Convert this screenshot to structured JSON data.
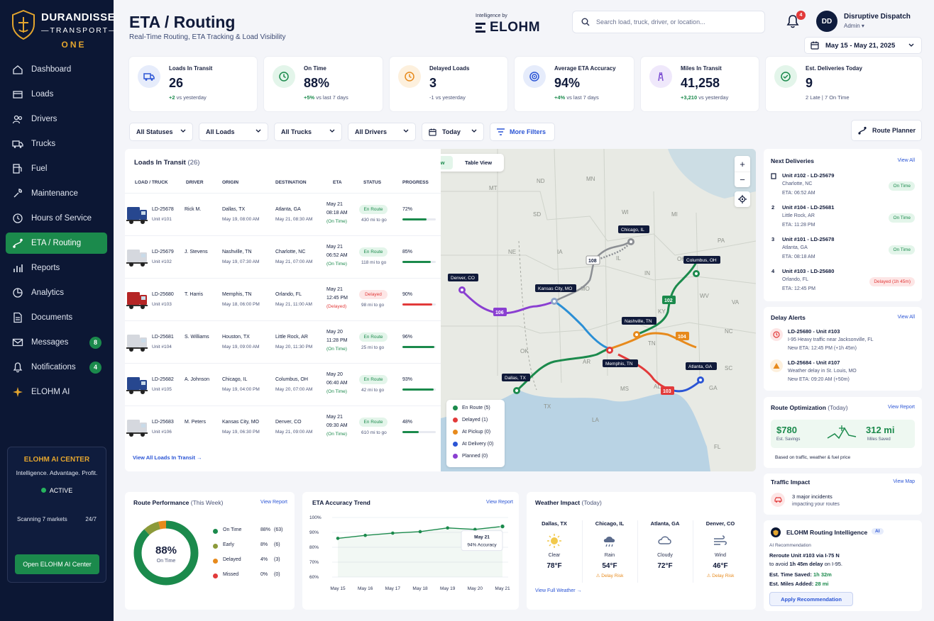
{
  "brand": {
    "name": "DURANDISSE",
    "sub": "TRANSPORT",
    "edition": "ONE"
  },
  "nav": [
    {
      "label": "Dashboard",
      "icon": "home-icon"
    },
    {
      "label": "Loads",
      "icon": "box-icon"
    },
    {
      "label": "Drivers",
      "icon": "users-icon"
    },
    {
      "label": "Trucks",
      "icon": "truck-icon"
    },
    {
      "label": "Fuel",
      "icon": "fuel-icon"
    },
    {
      "label": "Maintenance",
      "icon": "wrench-icon"
    },
    {
      "label": "Hours of Service",
      "icon": "clock-icon"
    },
    {
      "label": "ETA / Routing",
      "icon": "route-icon",
      "active": true
    },
    {
      "label": "Reports",
      "icon": "bar-chart-icon"
    },
    {
      "label": "Analytics",
      "icon": "analytics-icon"
    },
    {
      "label": "Documents",
      "icon": "document-icon"
    },
    {
      "label": "Messages",
      "icon": "mail-icon",
      "badge": "8"
    },
    {
      "label": "Notifications",
      "icon": "bell-icon",
      "badge": "4"
    },
    {
      "label": "ELOHM AI",
      "icon": "sparkle-icon"
    }
  ],
  "ai_center": {
    "title": "ELOHM AI CENTER",
    "subtitle": "Intelligence. Advantage. Profit.",
    "status": "ACTIVE",
    "scanning": "Scanning 7 markets",
    "uptime": "24/7",
    "button": "Open ELOHM AI Center"
  },
  "header": {
    "title": "ETA / Routing",
    "subtitle": "Real-Time Routing, ETA Tracking & Load Visibility",
    "intel_label": "Intelligence by",
    "intel_brand": "ELOHM",
    "search_placeholder": "Search load, truck, driver, or location...",
    "bell_count": "4",
    "avatar": "DD",
    "user_name": "Disruptive Dispatch",
    "user_role": "Admin",
    "date_range": "May 15 - May 21, 2025"
  },
  "kpis": [
    {
      "label": "Loads In Transit",
      "value": "26",
      "delta": "+2",
      "delta_text": "vs yesterday",
      "color": "#2b55d5",
      "bg": "#e6ecfb",
      "icon": "truck-icon"
    },
    {
      "label": "On Time",
      "value": "88%",
      "delta": "+5%",
      "delta_text": "vs last 7 days",
      "color": "#1b8a4c",
      "bg": "#e3f5ea",
      "icon": "clock-icon"
    },
    {
      "label": "Delayed Loads",
      "value": "3",
      "delta": "",
      "delta_text": "-1 vs yesterday",
      "color": "#e78a1c",
      "bg": "#fdf0dd",
      "icon": "clock-icon"
    },
    {
      "label": "Average ETA Accuracy",
      "value": "94%",
      "delta": "+4%",
      "delta_text": "vs last 7 days",
      "color": "#2b55d5",
      "bg": "#e6ecfb",
      "icon": "target-icon"
    },
    {
      "label": "Miles In Transit",
      "value": "41,258",
      "delta": "+3,210",
      "delta_text": "vs yesterday",
      "color": "#7a4bd1",
      "bg": "#efe8fb",
      "icon": "road-icon"
    },
    {
      "label": "Est. Deliveries Today",
      "value": "9",
      "delta": "",
      "delta_text": "2 Late  |  7 On Time",
      "color": "#1b8a4c",
      "bg": "#e3f5ea",
      "icon": "check-circle-icon"
    }
  ],
  "filters": [
    "All Statuses",
    "All Loads",
    "All Trucks",
    "All Drivers",
    "Today",
    "More Filters",
    "Route Planner"
  ],
  "loads": {
    "title": "Loads In Transit",
    "count": "(26)",
    "headers": [
      "LOAD / TRUCK",
      "DRIVER",
      "ORIGIN",
      "DESTINATION",
      "ETA",
      "STATUS",
      "PROGRESS"
    ],
    "rows": [
      {
        "load": "LD-25678",
        "unit": "Unit #101",
        "driver": "Rick M.",
        "origin": "Dallas, TX",
        "origin_t": "May 19, 08:00 AM",
        "dest": "Atlanta, GA",
        "dest_t": "May 21, 08:30 AM",
        "eta_d": "May 21",
        "eta_t": "08:18 AM",
        "eta_s": "(On Time)",
        "status": "En Route",
        "miles": "430 mi to go",
        "progress": 72,
        "pct": "72%",
        "truck": "#27478f",
        "late": false
      },
      {
        "load": "LD-25679",
        "unit": "Unit #102",
        "driver": "J. Stevens",
        "origin": "Nashville, TN",
        "origin_t": "May 19, 07:30 AM",
        "dest": "Charlotte, NC",
        "dest_t": "May 21, 07:00 AM",
        "eta_d": "May 21",
        "eta_t": "06:52 AM",
        "eta_s": "(On Time)",
        "status": "En Route",
        "miles": "118 mi to go",
        "progress": 85,
        "pct": "85%",
        "truck": "#d5d8de",
        "late": false
      },
      {
        "load": "LD-25680",
        "unit": "Unit #103",
        "driver": "T. Harris",
        "origin": "Memphis, TN",
        "origin_t": "May 18, 06:00 PM",
        "dest": "Orlando, FL",
        "dest_t": "May 21, 11:00 AM",
        "eta_d": "May 21",
        "eta_t": "12:45 PM",
        "eta_s": "(Delayed)",
        "status": "Delayed",
        "miles": "98 mi to go",
        "progress": 90,
        "pct": "90%",
        "truck": "#b52525",
        "late": true
      },
      {
        "load": "LD-25681",
        "unit": "Unit #104",
        "driver": "S. Williams",
        "origin": "Houston, TX",
        "origin_t": "May 19, 09:00 AM",
        "dest": "Little Rock, AR",
        "dest_t": "May 20, 11:30 PM",
        "eta_d": "May 20",
        "eta_t": "11:28 PM",
        "eta_s": "(On Time)",
        "status": "En Route",
        "miles": "25 mi to go",
        "progress": 96,
        "pct": "96%",
        "truck": "#d5d8de",
        "late": false
      },
      {
        "load": "LD-25682",
        "unit": "Unit #105",
        "driver": "A. Johnson",
        "origin": "Chicago, IL",
        "origin_t": "May 19, 04:00 PM",
        "dest": "Columbus, OH",
        "dest_t": "May 20, 07:00 AM",
        "eta_d": "May 20",
        "eta_t": "06:40 AM",
        "eta_s": "(On Time)",
        "status": "En Route",
        "miles": "42 mi to go",
        "progress": 93,
        "pct": "93%",
        "truck": "#27478f",
        "late": false
      },
      {
        "load": "LD-25683",
        "unit": "Unit #106",
        "driver": "M. Peters",
        "origin": "Kansas City, MO",
        "origin_t": "May 19, 06:30 PM",
        "dest": "Denver, CO",
        "dest_t": "May 21, 09:00 AM",
        "eta_d": "May 21",
        "eta_t": "09:30 AM",
        "eta_s": "(On Time)",
        "status": "En Route",
        "miles": "610 mi to go",
        "progress": 48,
        "pct": "48%",
        "truck": "#d5d8de",
        "late": false
      }
    ],
    "view_all": "View All Loads In Transit"
  },
  "map": {
    "tabs": [
      "Map View",
      "Table View"
    ],
    "legend": [
      {
        "label": "En Route (5)",
        "color": "#1b8a4c"
      },
      {
        "label": "Delayed (1)",
        "color": "#e23a3a"
      },
      {
        "label": "At Pickup (0)",
        "color": "#e78a1c"
      },
      {
        "label": "At Delivery (0)",
        "color": "#2b55d5"
      },
      {
        "label": "Planned (0)",
        "color": "#8a3fd1"
      }
    ],
    "cities": [
      "Denver, CO",
      "Kansas City, MO",
      "Chicago, IL",
      "Columbus, OH",
      "Nashville, TN",
      "Memphis, TN",
      "Atlanta, GA",
      "Dallas, TX"
    ],
    "route_badges": [
      "106",
      "108",
      "102",
      "104",
      "103"
    ],
    "states": [
      "MT",
      "ND",
      "MN",
      "WI",
      "SD",
      "MI",
      "NE",
      "IA",
      "IL",
      "IN",
      "OH",
      "PA",
      "KS",
      "MO",
      "KY",
      "WV",
      "VA",
      "NC",
      "OK",
      "TN",
      "SC",
      "AR",
      "MS",
      "AL",
      "GA",
      "TX",
      "LA",
      "FL"
    ]
  },
  "next_deliveries": {
    "title": "Next Deliveries",
    "link": "View All",
    "items": [
      {
        "n": "1",
        "unit": "Unit #102 - LD-25679",
        "city": "Charlotte, NC",
        "eta": "ETA: 06:52 AM",
        "status": "On Time"
      },
      {
        "n": "2",
        "unit": "Unit #104 - LD-25681",
        "city": "Little Rock, AR",
        "eta": "ETA: 11:28 PM",
        "status": "On Time"
      },
      {
        "n": "3",
        "unit": "Unit #101 - LD-25678",
        "city": "Atlanta, GA",
        "eta": "ETA: 08:18 AM",
        "status": "On Time"
      },
      {
        "n": "4",
        "unit": "Unit #103 - LD-25680",
        "city": "Orlando, FL",
        "eta": "ETA: 12:45 PM",
        "status": "Delayed (1h 45m)"
      }
    ]
  },
  "delay_alerts": {
    "title": "Delay Alerts",
    "link": "View All",
    "items": [
      {
        "title": "LD-25680 - Unit #103",
        "line1": "I-95 Heavy traffic near Jacksonville, FL",
        "line2": "New ETA: 12:45 PM (+1h 45m)",
        "color": "#e23a3a"
      },
      {
        "title": "LD-25684 - Unit #107",
        "line1": "Weather delay in St. Louis, MO",
        "line2": "New ETA: 09:20 AM (+50m)",
        "color": "#e78a1c"
      }
    ]
  },
  "route_opt": {
    "title": "Route Optimization",
    "qualifier": "(Today)",
    "link": "View Report",
    "savings": "$780",
    "savings_label": "Est. Savings",
    "miles": "312 mi",
    "miles_label": "Miles Saved",
    "note": "Based on traffic, weather & fuel price"
  },
  "traffic": {
    "title": "Traffic Impact",
    "link": "View Map",
    "line1": "3 major incidents",
    "line2": "impacting your routes"
  },
  "routing_intel": {
    "title": "ELOHM Routing Intelligence",
    "tag": "AI",
    "kicker": "AI Recommendation",
    "line1": "Reroute Unit #103 via I-75 N",
    "line2a": "to avoid",
    "line2b": "1h 45m delay",
    "line2c": "on I-95.",
    "saved_label": "Est. Time Saved:",
    "saved": "1h 32m",
    "added_label": "Est. Miles Added:",
    "added": "28 mi",
    "button": "Apply Recommendation"
  },
  "route_perf": {
    "title": "Route Performance",
    "qualifier": "(This Week)",
    "link": "View Report",
    "center_value": "88%",
    "center_label": "On Time",
    "items": [
      {
        "label": "On Time",
        "pct": "88%",
        "count": "(63)",
        "value": 88,
        "color": "#1b8a4c"
      },
      {
        "label": "Early",
        "pct": "8%",
        "count": "(6)",
        "value": 8,
        "color": "#8c9a3a"
      },
      {
        "label": "Delayed",
        "pct": "4%",
        "count": "(3)",
        "value": 4,
        "color": "#e78a1c"
      },
      {
        "label": "Missed",
        "pct": "0%",
        "count": "(0)",
        "value": 0,
        "color": "#e23a3a"
      }
    ]
  },
  "chart_data": {
    "type": "line",
    "title": "ETA Accuracy Trend",
    "x": [
      "May 15",
      "May 16",
      "May 17",
      "May 18",
      "May 19",
      "May 20",
      "May 21"
    ],
    "series": [
      {
        "values": [
          86,
          88,
          89.5,
          90.5,
          93,
          92,
          94
        ]
      }
    ],
    "ylim": [
      60,
      100
    ],
    "yticks": [
      "100%",
      "90%",
      "80%",
      "70%",
      "60%"
    ],
    "tooltip": {
      "date": "May 21",
      "text": "94% Accuracy"
    },
    "link": "View Report"
  },
  "weather": {
    "title": "Weather Impact",
    "qualifier": "(Today)",
    "link": "View Full Weather",
    "cities": [
      {
        "city": "Dallas, TX",
        "cond": "Clear",
        "temp": "78°F",
        "risk": "",
        "icon": "sun-icon"
      },
      {
        "city": "Chicago, IL",
        "cond": "Rain",
        "temp": "54°F",
        "risk": "Delay Risk",
        "icon": "rain-icon"
      },
      {
        "city": "Atlanta, GA",
        "cond": "Cloudy",
        "temp": "72°F",
        "risk": "",
        "icon": "cloud-icon"
      },
      {
        "city": "Denver, CO",
        "cond": "Wind",
        "temp": "46°F",
        "risk": "Delay Risk",
        "icon": "wind-icon"
      }
    ]
  }
}
